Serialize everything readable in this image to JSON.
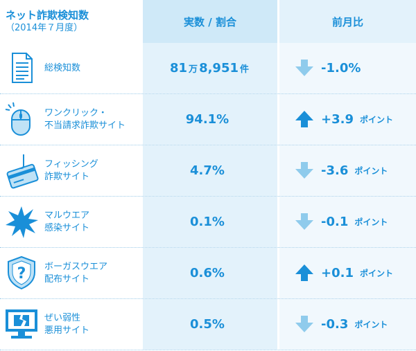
{
  "header": {
    "title": "ネット詐欺検知数",
    "subtitle": "（2014年７月度）",
    "col_value": "実数 / 割合",
    "col_change": "前月比"
  },
  "rows": [
    {
      "label1": "総検知数",
      "label2": "",
      "value_main": "81",
      "value_mid": "万",
      "value_rest": "8,951",
      "value_unit": "件",
      "arrow": "down",
      "change": "-1.0%",
      "change_unit": "",
      "icon": "document-icon"
    },
    {
      "label1": "ワンクリック・",
      "label2": "不当請求詐欺サイト",
      "value_main": "94.1%",
      "value_mid": "",
      "value_rest": "",
      "value_unit": "",
      "arrow": "up",
      "change": "+3.9",
      "change_unit": "ポイント",
      "icon": "mouse-click-icon"
    },
    {
      "label1": "フィッシング",
      "label2": "詐欺サイト",
      "value_main": "4.7%",
      "value_mid": "",
      "value_rest": "",
      "value_unit": "",
      "arrow": "down",
      "change": "-3.6",
      "change_unit": "ポイント",
      "icon": "phishing-card-icon"
    },
    {
      "label1": "マルウエア",
      "label2": "感染サイト",
      "value_main": "0.1%",
      "value_mid": "",
      "value_rest": "",
      "value_unit": "",
      "arrow": "down",
      "change": "-0.1",
      "change_unit": "ポイント",
      "icon": "malware-burst-icon"
    },
    {
      "label1": "ボーガスウエア",
      "label2": "配布サイト",
      "value_main": "0.6%",
      "value_mid": "",
      "value_rest": "",
      "value_unit": "",
      "arrow": "up",
      "change": "+0.1",
      "change_unit": "ポイント",
      "icon": "shield-question-icon"
    },
    {
      "label1": "ぜい弱性",
      "label2": "悪用サイト",
      "value_main": "0.5%",
      "value_mid": "",
      "value_rest": "",
      "value_unit": "",
      "arrow": "down",
      "change": "-0.3",
      "change_unit": "ポイント",
      "icon": "broken-screen-icon"
    }
  ],
  "colors": {
    "accent": "#1a8fd8",
    "arrow_up": "#1a8fd8",
    "arrow_down": "#8fcbec",
    "col_value_bg": "#e3f2fb",
    "col_change_bg": "#f1f8fd"
  },
  "chart_data": {
    "type": "table",
    "title": "ネット詐欺検知数",
    "subtitle": "（2014年７月度）",
    "columns": [
      "実数 / 割合",
      "前月比"
    ],
    "categories": [
      "総検知数",
      "ワンクリック・不当請求詐欺サイト",
      "フィッシング詐欺サイト",
      "マルウエア感染サイト",
      "ボーガスウエア配布サイト",
      "ぜい弱性悪用サイト"
    ],
    "values": [
      "81万8,951件",
      "94.1%",
      "4.7%",
      "0.1%",
      "0.6%",
      "0.5%"
    ],
    "changes": [
      "-1.0%",
      "+3.9ポイント",
      "-3.6ポイント",
      "-0.1ポイント",
      "+0.1ポイント",
      "-0.3ポイント"
    ]
  }
}
